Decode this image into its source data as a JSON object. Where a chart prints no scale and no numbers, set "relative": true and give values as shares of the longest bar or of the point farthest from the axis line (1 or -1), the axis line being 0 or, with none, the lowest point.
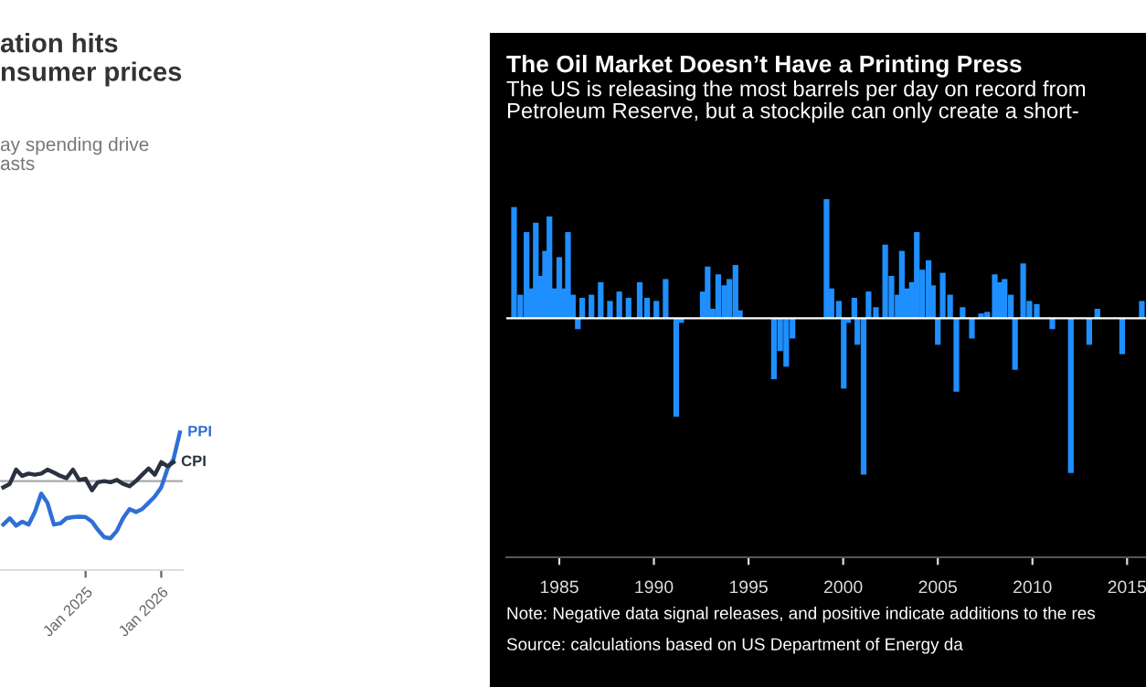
{
  "chart_data": [
    {
      "type": "line",
      "title": "ation hits\nnsumer prices",
      "subtitle": "ay spending drive\nasts",
      "relative": true,
      "x": [
        "2023-12",
        "2024-01",
        "2024-02",
        "2024-03",
        "2024-04",
        "2024-05",
        "2024-06",
        "2024-07",
        "2024-08",
        "2024-09",
        "2024-10",
        "2024-11",
        "2024-12",
        "2025-01",
        "2025-02",
        "2025-03",
        "2025-04",
        "2025-05",
        "2025-06",
        "2025-07",
        "2025-08",
        "2025-09",
        "2025-10",
        "2025-11",
        "2025-12",
        "2026-01",
        "2026-02",
        "2026-03",
        "2026-04"
      ],
      "xlim": [
        "2023-11-15",
        "2026-04-15"
      ],
      "xticks": [
        {
          "value": "2025-01",
          "label": "Jan 2025"
        },
        {
          "value": "2026-01",
          "label": "Jan 2026"
        }
      ],
      "series": [
        {
          "name": "PPI",
          "color": "#2f6fd6",
          "values": [
            -0.76,
            -0.65,
            -0.78,
            -0.71,
            -0.76,
            -0.54,
            -0.22,
            -0.38,
            -0.76,
            -0.74,
            -0.65,
            -0.63,
            -0.62,
            -0.63,
            -0.71,
            -0.85,
            -0.98,
            -1.0,
            -0.87,
            -0.65,
            -0.49,
            -0.54,
            -0.49,
            -0.38,
            -0.27,
            -0.11,
            0.22,
            0.38,
            0.85
          ]
        },
        {
          "name": "CPI",
          "color": "#2a3140",
          "values": [
            -0.11,
            -0.05,
            0.2,
            0.09,
            0.13,
            0.11,
            0.13,
            0.2,
            0.15,
            0.09,
            0.05,
            0.2,
            0.02,
            0.04,
            -0.16,
            -0.02,
            0.0,
            -0.02,
            0.02,
            -0.05,
            -0.09,
            0.0,
            0.11,
            0.22,
            0.11,
            0.33,
            0.26,
            0.33,
            null
          ]
        }
      ]
    },
    {
      "type": "bar",
      "title": "The Oil Market Doesn’t Have a Printing Press",
      "subtitle": "The US is releasing the most barrels per day on record from\nPetroleum Reserve, but a stockpile can only create a short-",
      "annotations": [
        "Note: Negative data signal releases, and positive indicate additions to the res",
        "Source: calculations based on US Department of Energy da"
      ],
      "relative": true,
      "color": "#1f8fff",
      "x": [
        1982.61,
        1982.94,
        1983.27,
        1983.5,
        1983.76,
        1984.02,
        1984.25,
        1984.48,
        1984.74,
        1985.0,
        1985.23,
        1985.46,
        1985.72,
        1985.98,
        1986.21,
        1986.7,
        1987.19,
        1987.68,
        1988.17,
        1988.66,
        1989.25,
        1989.64,
        1990.13,
        1990.62,
        1990.95,
        1991.18,
        1991.44,
        1991.93,
        1992.58,
        1992.84,
        1993.1,
        1993.4,
        1993.72,
        1993.99,
        1994.31,
        1994.54,
        1995.2,
        1996.34,
        1996.67,
        1996.99,
        1997.32,
        1997.81,
        1998.46,
        1998.95,
        1999.12,
        1999.38,
        1999.77,
        2000.03,
        2000.26,
        2000.59,
        2000.75,
        2001.08,
        2001.34,
        2001.73,
        2002.22,
        2002.55,
        2002.88,
        2003.1,
        2003.37,
        2003.63,
        2003.89,
        2004.18,
        2004.51,
        2004.74,
        2005.0,
        2005.26,
        2005.65,
        2005.98,
        2006.31,
        2006.8,
        2007.29,
        2007.61,
        2008.01,
        2008.27,
        2008.53,
        2008.86,
        2009.08,
        2009.51,
        2009.84,
        2010.23,
        2011.05,
        2012.03,
        2013.0,
        2013.43,
        2014.74,
        2015.78
      ],
      "values": [
        0.71,
        0.15,
        0.55,
        0.19,
        0.61,
        0.27,
        0.43,
        0.65,
        0.19,
        0.39,
        0.19,
        0.55,
        0.15,
        -0.07,
        0.13,
        0.15,
        0.23,
        0.11,
        0.17,
        0.13,
        0.23,
        0.13,
        0.11,
        0.25,
        null,
        -0.63,
        -0.03,
        null,
        0.17,
        0.33,
        0.06,
        0.28,
        0.21,
        0.25,
        0.34,
        0.05,
        null,
        -0.39,
        -0.21,
        -0.31,
        -0.13,
        null,
        null,
        null,
        0.76,
        0.19,
        0.11,
        -0.45,
        -0.03,
        0.13,
        -0.17,
        -1.0,
        0.17,
        0.07,
        0.47,
        0.27,
        0.15,
        0.43,
        0.19,
        0.23,
        0.55,
        0.31,
        0.37,
        0.21,
        -0.17,
        0.29,
        0.15,
        -0.47,
        0.07,
        -0.13,
        0.03,
        0.04,
        0.28,
        0.23,
        0.25,
        0.15,
        -0.33,
        0.35,
        0.11,
        0.09,
        -0.07,
        -0.99,
        -0.17,
        0.06,
        -0.23,
        0.11
      ],
      "xlim": [
        1982.2,
        2016.0
      ],
      "xticks": [
        1985,
        1990,
        1995,
        2000,
        2005,
        2010,
        2015
      ]
    }
  ]
}
